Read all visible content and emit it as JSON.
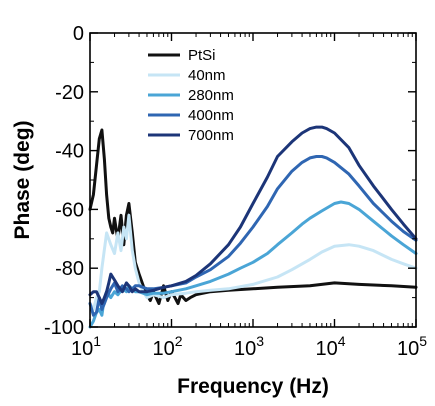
{
  "chart_data": {
    "type": "line",
    "title": "",
    "xlabel": "Frequency (Hz)",
    "ylabel": "Phase (deg)",
    "xscale": "log",
    "xlim": [
      10,
      100000
    ],
    "ylim": [
      -100,
      0
    ],
    "x_ticks": [
      {
        "value": 10,
        "base": "10",
        "exp": "1"
      },
      {
        "value": 100,
        "base": "10",
        "exp": "2"
      },
      {
        "value": 1000,
        "base": "10",
        "exp": "3"
      },
      {
        "value": 10000,
        "base": "10",
        "exp": "4"
      },
      {
        "value": 100000,
        "base": "10",
        "exp": "5"
      }
    ],
    "y_ticks": [
      {
        "value": 0,
        "label": "0"
      },
      {
        "value": -20,
        "label": "-20"
      },
      {
        "value": -40,
        "label": "-40"
      },
      {
        "value": -60,
        "label": "-60"
      },
      {
        "value": -80,
        "label": "-80"
      },
      {
        "value": -100,
        "label": "-100"
      }
    ],
    "grid": false,
    "legend_position": "top-left",
    "series": [
      {
        "name": "PtSi",
        "color": "#111111",
        "x": [
          10,
          11,
          12,
          13,
          14,
          15,
          16,
          17,
          18,
          19,
          20,
          21,
          22,
          24,
          26,
          28,
          30,
          33,
          36,
          40,
          45,
          50,
          55,
          60,
          70,
          80,
          90,
          100,
          110,
          120,
          130,
          150,
          170,
          200,
          300,
          500,
          1000,
          2000,
          5000,
          10000,
          20000,
          50000,
          100000
        ],
        "y": [
          -60,
          -55,
          -45,
          -36,
          -33,
          -43,
          -55,
          -63,
          -66,
          -68,
          -63,
          -67,
          -70,
          -62,
          -72,
          -62,
          -58,
          -68,
          -78,
          -82,
          -86,
          -89,
          -91,
          -88,
          -92,
          -86,
          -91,
          -88,
          -90,
          -92,
          -89,
          -91,
          -90,
          -89,
          -88,
          -87.5,
          -87,
          -86.5,
          -86,
          -85,
          -85.5,
          -86,
          -86.5
        ]
      },
      {
        "name": "40nm",
        "color": "#c6e5f5",
        "x": [
          10,
          11,
          12,
          13,
          14,
          16,
          18,
          20,
          22,
          24,
          26,
          28,
          30,
          33,
          36,
          40,
          45,
          50,
          60,
          80,
          100,
          150,
          200,
          300,
          500,
          1000,
          2000,
          3000,
          5000,
          7000,
          10000,
          15000,
          20000,
          30000,
          50000,
          70000,
          100000
        ],
        "y": [
          -92,
          -94,
          -90,
          -88,
          -80,
          -68,
          -72,
          -75,
          -68,
          -74,
          -66,
          -70,
          -62,
          -74,
          -80,
          -85,
          -88,
          -90,
          -89,
          -90,
          -89,
          -88.5,
          -88,
          -87.5,
          -87,
          -85.5,
          -83,
          -80.5,
          -77,
          -74.5,
          -72.5,
          -72,
          -72.5,
          -74,
          -77,
          -78.5,
          -80
        ]
      },
      {
        "name": "280nm",
        "color": "#4aa5d6",
        "x": [
          10,
          11,
          12,
          13,
          14,
          15,
          16,
          18,
          20,
          22,
          25,
          28,
          30,
          33,
          36,
          40,
          50,
          60,
          80,
          100,
          150,
          200,
          300,
          500,
          700,
          1000,
          1500,
          2000,
          3000,
          4000,
          5000,
          7000,
          10000,
          12000,
          15000,
          20000,
          30000,
          50000,
          70000,
          100000
        ],
        "y": [
          -100,
          -98,
          -95,
          -94,
          -96,
          -90,
          -88,
          -90,
          -88,
          -89,
          -87,
          -88,
          -86,
          -87,
          -88,
          -88,
          -89,
          -88.5,
          -88.5,
          -88,
          -87,
          -86,
          -84.5,
          -82,
          -80,
          -78,
          -75,
          -72,
          -68,
          -65,
          -63,
          -60.5,
          -58,
          -57.5,
          -58,
          -60,
          -64,
          -69,
          -72,
          -75
        ]
      },
      {
        "name": "400nm",
        "color": "#2f66b2",
        "x": [
          10,
          11,
          12,
          13,
          14,
          15,
          16,
          18,
          20,
          22,
          25,
          28,
          30,
          33,
          36,
          40,
          50,
          60,
          80,
          100,
          150,
          200,
          300,
          500,
          700,
          1000,
          1500,
          2000,
          3000,
          4000,
          5000,
          6000,
          7000,
          8000,
          10000,
          15000,
          20000,
          30000,
          50000,
          70000,
          100000
        ],
        "y": [
          -92,
          -96,
          -95,
          -90,
          -94,
          -92,
          -90,
          -87,
          -85,
          -88,
          -86,
          -87,
          -88,
          -87,
          -86,
          -86,
          -87,
          -87,
          -86.5,
          -86,
          -85,
          -83,
          -80.5,
          -76,
          -71.5,
          -66,
          -59,
          -53,
          -47,
          -44,
          -42.5,
          -42,
          -42,
          -42.5,
          -44,
          -48,
          -52,
          -58,
          -64,
          -67.5,
          -70.5
        ]
      },
      {
        "name": "700nm",
        "color": "#1c3578",
        "x": [
          10,
          11,
          12,
          13,
          14,
          15,
          16,
          17,
          18,
          20,
          22,
          25,
          28,
          30,
          33,
          36,
          40,
          50,
          60,
          80,
          100,
          150,
          200,
          300,
          500,
          700,
          1000,
          1500,
          2000,
          3000,
          4000,
          5000,
          6000,
          7000,
          8000,
          10000,
          15000,
          20000,
          30000,
          50000,
          70000,
          100000
        ],
        "y": [
          -89,
          -88,
          -88,
          -90,
          -92,
          -90,
          -88,
          -85,
          -82,
          -84,
          -86,
          -88,
          -85,
          -86,
          -88,
          -87,
          -88,
          -88,
          -87.5,
          -86.5,
          -86,
          -84.5,
          -82.5,
          -78.5,
          -72,
          -66,
          -58,
          -49,
          -42,
          -37,
          -34,
          -32.5,
          -32,
          -32,
          -32.5,
          -34,
          -39,
          -45,
          -52,
          -60,
          -65,
          -70
        ]
      }
    ]
  }
}
